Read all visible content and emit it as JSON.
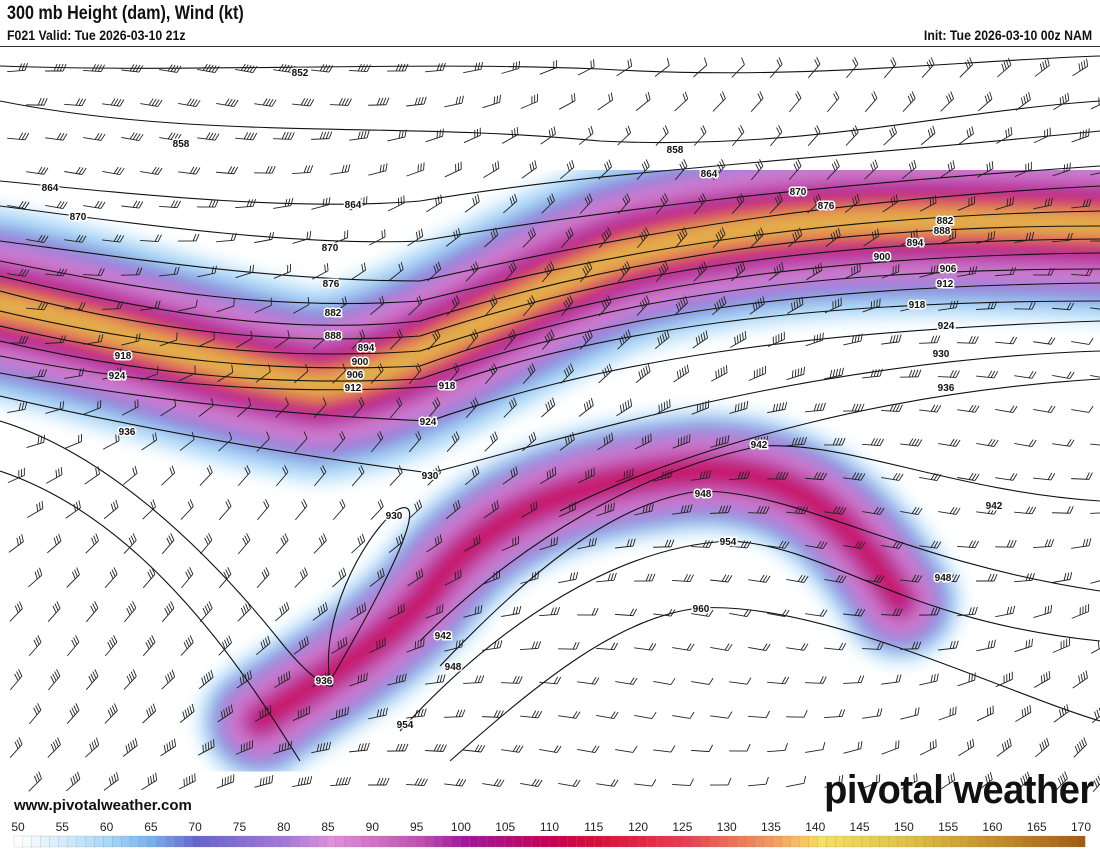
{
  "header": {
    "title": "300 mb Height (dam), Wind (kt)",
    "valid": "F021 Valid: Tue 2026-03-10 21z",
    "init": "Init: Tue 2026-03-10 00z NAM"
  },
  "footer": {
    "website": "www.pivotalweather.com",
    "logo": "pivotal weather"
  },
  "contour_labels": [
    "852",
    "858",
    "858",
    "864",
    "864",
    "864",
    "870",
    "870",
    "870",
    "876",
    "876",
    "882",
    "882",
    "888",
    "888",
    "894",
    "894",
    "900",
    "900",
    "906",
    "906",
    "912",
    "912",
    "918",
    "918",
    "918",
    "924",
    "924",
    "924",
    "930",
    "930",
    "930",
    "936",
    "936",
    "936",
    "942",
    "942",
    "942",
    "948",
    "948",
    "948",
    "954",
    "954",
    "960"
  ],
  "colorbar": {
    "units": "kt",
    "ticks": [
      "50",
      "55",
      "60",
      "65",
      "70",
      "75",
      "80",
      "85",
      "90",
      "95",
      "100",
      "105",
      "110",
      "115",
      "120",
      "125",
      "130",
      "135",
      "140",
      "145",
      "150",
      "155",
      "160",
      "165",
      "170"
    ],
    "stops": [
      {
        "value": 50,
        "color": "#ffffff"
      },
      {
        "value": 60,
        "color": "#a8d8f8"
      },
      {
        "value": 65,
        "color": "#78b0ec"
      },
      {
        "value": 70,
        "color": "#6464d0"
      },
      {
        "value": 80,
        "color": "#a878d8"
      },
      {
        "value": 85,
        "color": "#e090dc"
      },
      {
        "value": 95,
        "color": "#c050b0"
      },
      {
        "value": 100,
        "color": "#a4149c"
      },
      {
        "value": 110,
        "color": "#c80050"
      },
      {
        "value": 115,
        "color": "#d81038"
      },
      {
        "value": 125,
        "color": "#e84050"
      },
      {
        "value": 135,
        "color": "#f5a060"
      },
      {
        "value": 140,
        "color": "#f8e060"
      },
      {
        "value": 150,
        "color": "#e0c040"
      },
      {
        "value": 170,
        "color": "#a05810"
      }
    ]
  }
}
